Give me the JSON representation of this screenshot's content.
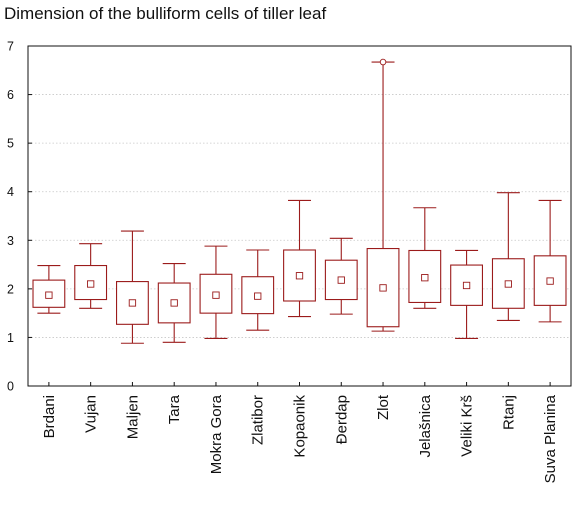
{
  "chart_data": {
    "type": "box",
    "title": "Dimension of the bulliform cells of tiller leaf",
    "xlabel": "",
    "ylabel": "",
    "ylim": [
      0,
      7
    ],
    "yticks": [
      0,
      1,
      2,
      3,
      4,
      5,
      6,
      7
    ],
    "grid": true,
    "categories": [
      "Brdani",
      "Vujan",
      "Maljen",
      "Tara",
      "Mokra  Gora",
      "Zlatibor",
      "Kopaonik",
      "Đerdap",
      "Zlot",
      "Jelašnica",
      "Veliki  Krš",
      "Rtanj",
      "Suva  Planina"
    ],
    "series": [
      {
        "min": [
          1.5,
          1.6,
          0.88,
          0.9,
          0.98,
          1.15,
          1.43,
          1.48,
          1.13,
          1.6,
          0.98,
          1.35,
          1.32
        ],
        "q1": [
          1.62,
          1.78,
          1.27,
          1.3,
          1.5,
          1.49,
          1.75,
          1.78,
          1.22,
          1.72,
          1.66,
          1.6,
          1.66
        ],
        "median": [
          1.87,
          2.1,
          1.71,
          1.71,
          1.87,
          1.85,
          2.27,
          2.18,
          2.02,
          2.23,
          2.07,
          2.1,
          2.16
        ],
        "q3": [
          2.18,
          2.48,
          2.15,
          2.12,
          2.3,
          2.25,
          2.8,
          2.59,
          2.83,
          2.79,
          2.49,
          2.62,
          2.68
        ],
        "max": [
          2.48,
          2.93,
          3.19,
          2.52,
          2.88,
          2.8,
          3.82,
          3.04,
          6.67,
          3.67,
          2.79,
          3.98,
          3.82
        ],
        "outliers": [
          [],
          [],
          [],
          [],
          [],
          [],
          [],
          [],
          [
            6.67
          ],
          [],
          [],
          [],
          []
        ]
      }
    ],
    "colors": {
      "box": "#9b1b1b",
      "grid": "#c8c8c8",
      "axis": "#111111"
    }
  }
}
